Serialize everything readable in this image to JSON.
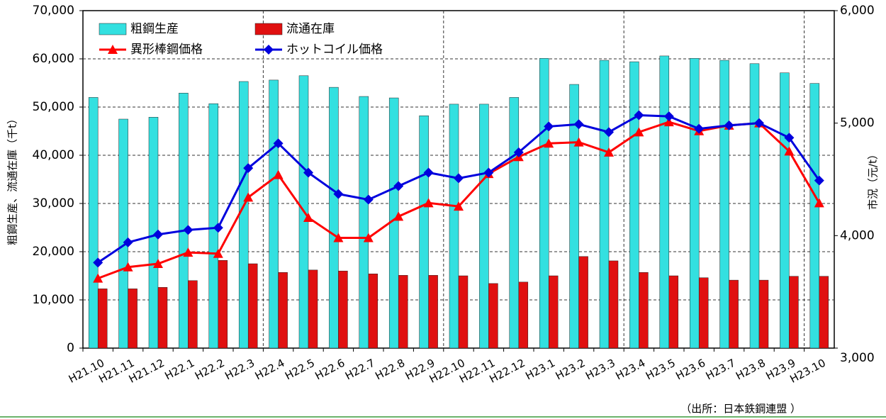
{
  "chart_data": {
    "type": "bar",
    "y_label": "粗鋼生産、流通在庫（千t）",
    "y2_label": "市況（元/t）",
    "source": "（出所：日本鉄鋼連盟 ）",
    "categories": [
      "H21.10",
      "H21.11",
      "H21.12",
      "H22.1",
      "H22.2",
      "H22.3",
      "H22.4",
      "H22.5",
      "H22.6",
      "H22.7",
      "H22.8",
      "H22.9",
      "H22.10",
      "H22.11",
      "H22.12",
      "H23.1",
      "H23.2",
      "H23.3",
      "H23.4",
      "H23.5",
      "H23.6",
      "H23.7",
      "H23.8",
      "H23.9",
      "H23.10"
    ],
    "series": [
      {
        "name": "粗鋼生産",
        "color": "#33e0e0",
        "values": [
          52000,
          47500,
          47900,
          52900,
          50700,
          55300,
          55600,
          56500,
          54100,
          52200,
          51900,
          48200,
          50600,
          50600,
          52000,
          60100,
          54700,
          59700,
          59400,
          60600,
          60100,
          59700,
          59000,
          57100,
          54900
        ]
      },
      {
        "name": "流通在庫",
        "color": "#e01010",
        "values": [
          12300,
          12300,
          12600,
          14000,
          18200,
          17500,
          15700,
          16200,
          16000,
          15400,
          15100,
          15100,
          15000,
          13400,
          13700,
          15000,
          19000,
          18100,
          15700,
          15000,
          14600,
          14100,
          14100,
          14900,
          14900
        ]
      },
      {
        "name": "異形棒鋼価格",
        "color": "#ff0000",
        "axis": "y2",
        "marker": "triangle",
        "values": [
          3620,
          3720,
          3750,
          3850,
          3840,
          4340,
          4540,
          4160,
          3980,
          3980,
          4170,
          4290,
          4260,
          4550,
          4700,
          4820,
          4830,
          4740,
          4920,
          5010,
          4930,
          4980,
          5000,
          4750,
          4290
        ]
      },
      {
        "name": "ホットコイル価格",
        "color": "#0000dd",
        "axis": "y2",
        "marker": "diamond",
        "values": [
          3760,
          3940,
          4010,
          4050,
          4070,
          4600,
          4820,
          4560,
          4370,
          4320,
          4440,
          4560,
          4510,
          4560,
          4740,
          4970,
          4990,
          4920,
          5070,
          5060,
          4950,
          4980,
          5000,
          4870,
          4490
        ]
      }
    ],
    "ylim": [
      0,
      70000
    ],
    "yticks": [
      0,
      {
        "value": 10000,
        "label": "10,000"
      },
      {
        "value": 20000,
        "label": "20,000"
      },
      {
        "value": 30000,
        "label": "30,000"
      },
      {
        "value": 40000,
        "label": "40,000"
      },
      {
        "value": 50000,
        "label": "50,000"
      },
      {
        "value": 60000,
        "label": "60,000"
      },
      {
        "value": 70000,
        "label": "70,000"
      }
    ],
    "y2lim": [
      3000,
      6000
    ],
    "y2ticks": [
      {
        "value": 3000,
        "label": "3,000"
      },
      {
        "value": 4000,
        "label": "4,000"
      },
      {
        "value": 5000,
        "label": "5,000"
      },
      {
        "value": 6000,
        "label": "6,000"
      }
    ],
    "grid": true
  }
}
